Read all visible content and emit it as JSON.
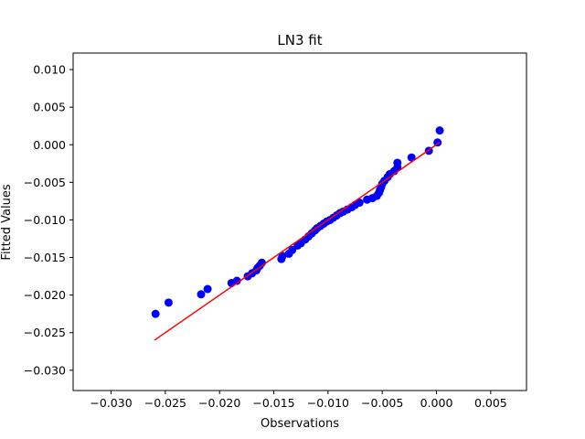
{
  "chart_data": {
    "type": "scatter",
    "title": "LN3 fit",
    "xlabel": "Observations",
    "ylabel": "Fitted Values",
    "xlim": [
      -0.0335,
      0.0083
    ],
    "ylim": [
      -0.0327,
      0.0122
    ],
    "xticks": [
      -0.03,
      -0.025,
      -0.02,
      -0.015,
      -0.01,
      -0.005,
      0.0,
      0.005
    ],
    "xtick_labels": [
      "−0.030",
      "−0.025",
      "−0.020",
      "−0.015",
      "−0.010",
      "−0.005",
      "0.000",
      "0.005"
    ],
    "yticks": [
      -0.03,
      -0.025,
      -0.02,
      -0.015,
      -0.01,
      -0.005,
      0.0,
      0.005,
      0.01
    ],
    "ytick_labels": [
      "−0.030",
      "−0.025",
      "−0.020",
      "−0.015",
      "−0.010",
      "−0.005",
      "0.000",
      "0.005",
      "0.010"
    ],
    "grid": false,
    "series": [
      {
        "kind": "scatter",
        "color": "#0000ff",
        "points": [
          [
            -0.0259,
            -0.0225
          ],
          [
            -0.0247,
            -0.021
          ],
          [
            -0.0217,
            -0.0199
          ],
          [
            -0.0211,
            -0.0192
          ],
          [
            -0.0189,
            -0.0184
          ],
          [
            -0.0184,
            -0.0181
          ],
          [
            -0.0174,
            -0.0175
          ],
          [
            -0.017,
            -0.0171
          ],
          [
            -0.0166,
            -0.0167
          ],
          [
            -0.0163,
            -0.0161
          ],
          [
            -0.0161,
            -0.0157
          ],
          [
            -0.0165,
            -0.0164
          ],
          [
            -0.0143,
            -0.0152
          ],
          [
            -0.0142,
            -0.0148
          ],
          [
            -0.0136,
            -0.0145
          ],
          [
            -0.0133,
            -0.014
          ],
          [
            -0.0128,
            -0.0134
          ],
          [
            -0.0125,
            -0.0131
          ],
          [
            -0.0121,
            -0.0126
          ],
          [
            -0.0118,
            -0.0122
          ],
          [
            -0.0115,
            -0.0118
          ],
          [
            -0.0112,
            -0.0114
          ],
          [
            -0.011,
            -0.0111
          ],
          [
            -0.0107,
            -0.0108
          ],
          [
            -0.0104,
            -0.0105
          ],
          [
            -0.0101,
            -0.0102
          ],
          [
            -0.0098,
            -0.01
          ],
          [
            -0.0095,
            -0.0097
          ],
          [
            -0.0092,
            -0.0094
          ],
          [
            -0.0089,
            -0.0091
          ],
          [
            -0.0086,
            -0.0089
          ],
          [
            -0.0082,
            -0.0086
          ],
          [
            -0.0078,
            -0.0083
          ],
          [
            -0.0075,
            -0.008
          ],
          [
            -0.0071,
            -0.0077
          ],
          [
            -0.0064,
            -0.0073
          ],
          [
            -0.0059,
            -0.0071
          ],
          [
            -0.0055,
            -0.0068
          ],
          [
            -0.0053,
            -0.0064
          ],
          [
            -0.0052,
            -0.006
          ],
          [
            -0.0051,
            -0.0056
          ],
          [
            -0.005,
            -0.0052
          ],
          [
            -0.0048,
            -0.0048
          ],
          [
            -0.0045,
            -0.0043
          ],
          [
            -0.0043,
            -0.0039
          ],
          [
            -0.0039,
            -0.0035
          ],
          [
            -0.0036,
            -0.003
          ],
          [
            -0.0036,
            -0.0024
          ],
          [
            -0.0023,
            -0.0017
          ],
          [
            -0.0007,
            -0.0008
          ],
          [
            0.0001,
            0.0003
          ],
          [
            0.0003,
            0.0019
          ]
        ]
      },
      {
        "kind": "line",
        "color": "#ff0000",
        "points": [
          [
            -0.026,
            -0.026
          ],
          [
            0.0003,
            0.0003
          ]
        ]
      }
    ]
  }
}
